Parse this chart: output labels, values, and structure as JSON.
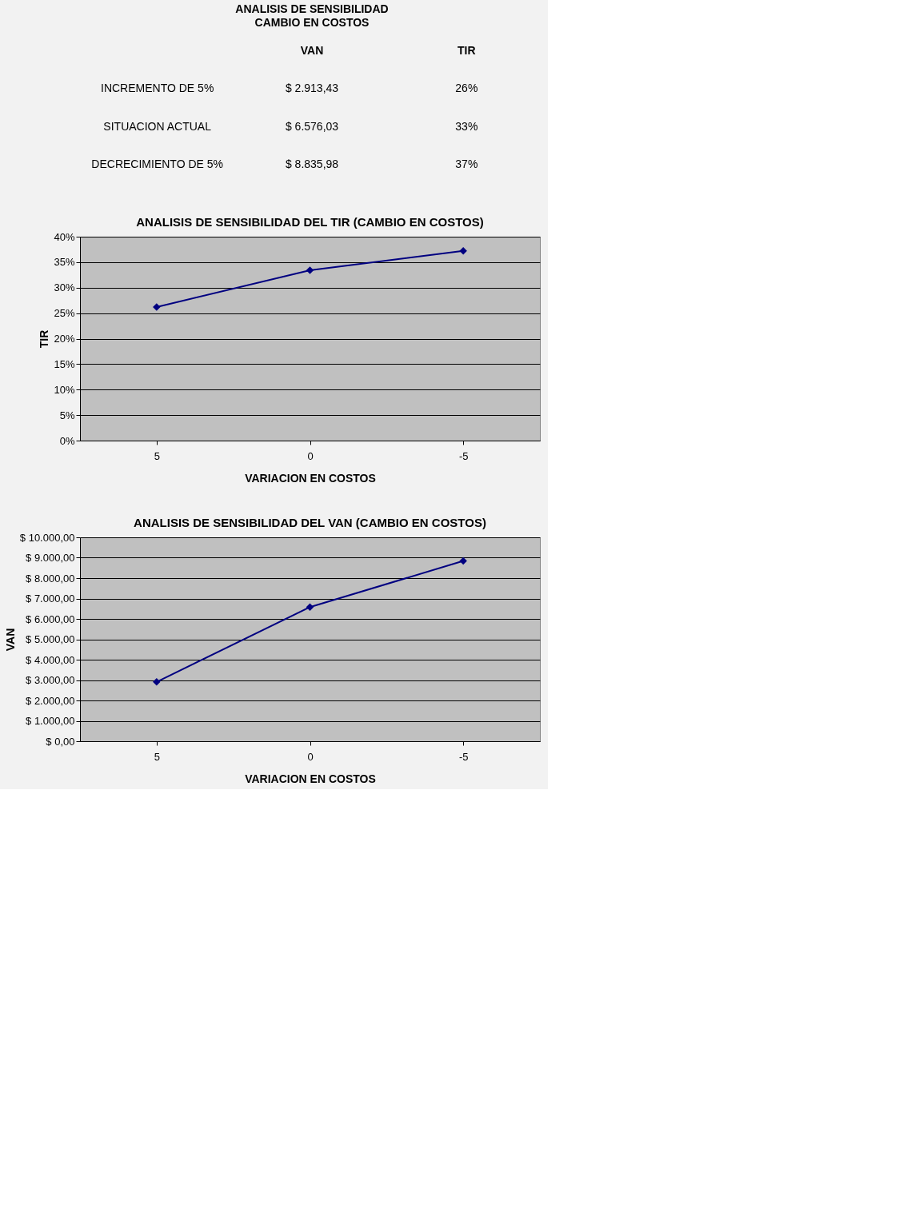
{
  "chart_data": [
    {
      "type": "other",
      "title": "ANALISIS DE SENSIBILIDAD",
      "subtitle": "CAMBIO EN COSTOS",
      "annotations": [
        "VAN",
        "TIR",
        "INCREMENTO DE 5%",
        "$ 2.913,43",
        "26%",
        "SITUACION ACTUAL",
        "$ 6.576,03",
        "33%",
        "DECRECIMIENTO DE 5%",
        "$ 8.835,98",
        "37%"
      ]
    },
    {
      "type": "line",
      "title": "ANALISIS DE SENSIBILIDAD DEL TIR (CAMBIO EN COSTOS)",
      "xlabel": "VARIACION EN COSTOS",
      "ylabel": "TIR",
      "categories": [
        "5",
        "0",
        "-5"
      ],
      "series": [
        {
          "color": "#000080",
          "values": [
            26.2,
            33.4,
            37.2
          ]
        }
      ],
      "ylim": [
        0,
        40
      ],
      "yticks": [
        {
          "value": 0,
          "label": "0%"
        },
        {
          "value": 5,
          "label": "5%"
        },
        {
          "value": 10,
          "label": "10%"
        },
        {
          "value": 15,
          "label": "15%"
        },
        {
          "value": 20,
          "label": "20%"
        },
        {
          "value": 25,
          "label": "25%"
        },
        {
          "value": 30,
          "label": "30%"
        },
        {
          "value": 35,
          "label": "35%"
        },
        {
          "value": 40,
          "label": "40%"
        }
      ],
      "grid": "y",
      "marker": "diamond",
      "line_style": "solid"
    },
    {
      "type": "line",
      "title": "ANALISIS DE SENSIBILIDAD DEL VAN (CAMBIO EN COSTOS)",
      "xlabel": "VARIACION EN COSTOS",
      "ylabel": "VAN",
      "categories": [
        "5",
        "0",
        "-5"
      ],
      "series": [
        {
          "color": "#000080",
          "values": [
            2910,
            6580,
            8840
          ]
        }
      ],
      "ylim": [
        0,
        10000
      ],
      "yticks": [
        {
          "value": 0,
          "label": "$ 0,00"
        },
        {
          "value": 1000,
          "label": "$ 1.000,00"
        },
        {
          "value": 2000,
          "label": "$ 2.000,00"
        },
        {
          "value": 3000,
          "label": "$ 3.000,00"
        },
        {
          "value": 4000,
          "label": "$ 4.000,00"
        },
        {
          "value": 5000,
          "label": "$ 5.000,00"
        },
        {
          "value": 6000,
          "label": "$ 6.000,00"
        },
        {
          "value": 7000,
          "label": "$ 7.000,00"
        },
        {
          "value": 8000,
          "label": "$ 8.000,00"
        },
        {
          "value": 9000,
          "label": "$ 9.000,00"
        },
        {
          "value": 10000,
          "label": "$ 10.000,00"
        }
      ],
      "grid": "y",
      "marker": "diamond",
      "line_style": "solid"
    }
  ]
}
